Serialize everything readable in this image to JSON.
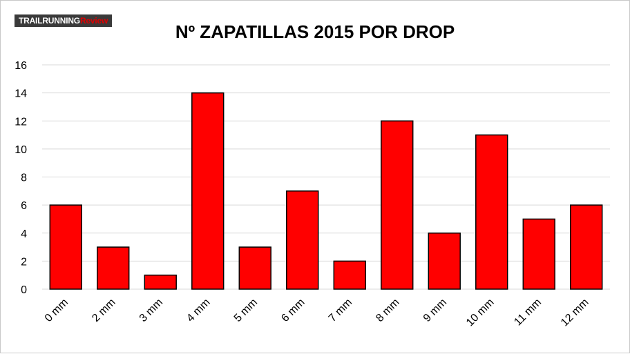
{
  "logo": {
    "part1": "TRAILRUNNING",
    "part2": "Review"
  },
  "chart_data": {
    "type": "bar",
    "title": "Nº ZAPATILLAS 2015 POR DROP",
    "xlabel": "",
    "ylabel": "",
    "categories": [
      "0 mm",
      "2 mm",
      "3 mm",
      "4 mm",
      "5 mm",
      "6 mm",
      "7 mm",
      "8 mm",
      "9 mm",
      "10 mm",
      "11 mm",
      "12 mm"
    ],
    "values": [
      6,
      3,
      1,
      14,
      3,
      7,
      2,
      12,
      4,
      11,
      5,
      6
    ],
    "ylim": [
      0,
      16
    ],
    "yticks": [
      0,
      2,
      4,
      6,
      8,
      10,
      12,
      14,
      16
    ],
    "grid": true,
    "legend": "none",
    "bar_color": "#ff0000",
    "bar_border_color": "#000000",
    "grid_color": "#d9d9d9"
  }
}
